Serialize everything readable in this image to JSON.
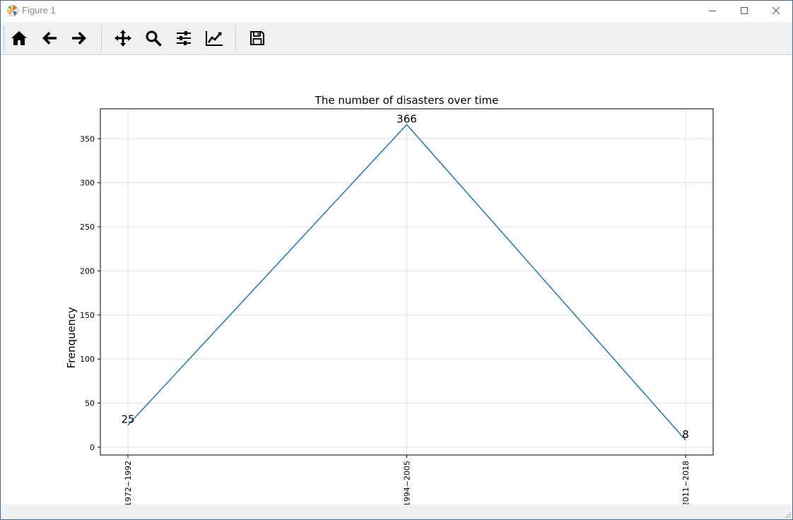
{
  "window": {
    "title": "Figure 1"
  },
  "toolbar": {
    "buttons": [
      {
        "name": "home-icon",
        "label": "Home"
      },
      {
        "name": "back-arrow-icon",
        "label": "Back"
      },
      {
        "name": "forward-arrow-icon",
        "label": "Forward"
      },
      {
        "name": "pan-move-icon",
        "label": "Pan"
      },
      {
        "name": "zoom-magnifier-icon",
        "label": "Zoom"
      },
      {
        "name": "subplots-sliders-icon",
        "label": "Subplots"
      },
      {
        "name": "customize-line-chart-icon",
        "label": "Customize"
      },
      {
        "name": "save-floppy-icon",
        "label": "Save"
      }
    ]
  },
  "chart_data": {
    "type": "line",
    "title": "The number of disasters over time",
    "xlabel": "",
    "ylabel": "Frenquency",
    "categories": [
      "1972~1992",
      "1994~2005",
      "2011~2018"
    ],
    "values": [
      25,
      366,
      8
    ],
    "data_labels": [
      "25",
      "366",
      "8"
    ],
    "ylim": [
      -8.9,
      383.9
    ],
    "yticks": [
      0,
      50,
      100,
      150,
      200,
      250,
      300,
      350
    ],
    "grid": true,
    "line_color": "#1f77b4",
    "xtick_rotation": "vertical"
  }
}
